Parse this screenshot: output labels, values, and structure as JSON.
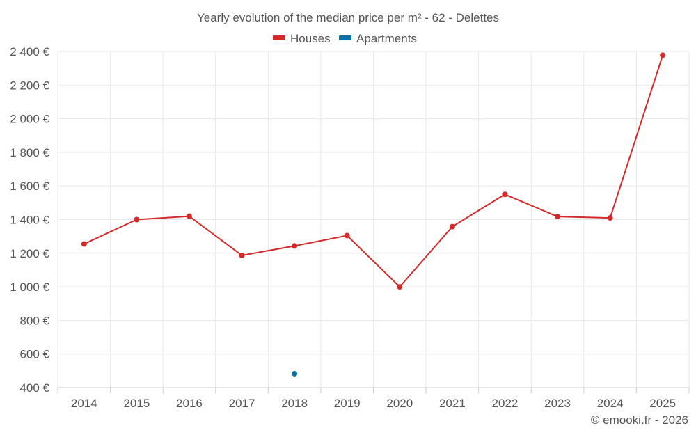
{
  "chart_data": {
    "type": "line",
    "title": "Yearly evolution of the median price per m² - 62 - Delettes",
    "categories": [
      "2014",
      "2015",
      "2016",
      "2017",
      "2018",
      "2019",
      "2020",
      "2021",
      "2022",
      "2023",
      "2024",
      "2025"
    ],
    "ylim": [
      400,
      2400
    ],
    "yticks": [
      400,
      600,
      800,
      1000,
      1200,
      1400,
      1600,
      1800,
      2000,
      2200,
      2400
    ],
    "ytick_labels": [
      "400 €",
      "600 €",
      "800 €",
      "1 000 €",
      "1 200 €",
      "1 400 €",
      "1 600 €",
      "1 800 €",
      "2 000 €",
      "2 200 €",
      "2 400 €"
    ],
    "grid": true,
    "legend_position": "top-center",
    "series": [
      {
        "name": "Houses",
        "color": "#d42a2a",
        "values": [
          1255,
          1400,
          1420,
          1187,
          1243,
          1305,
          1000,
          1358,
          1550,
          1418,
          1410,
          2378
        ]
      },
      {
        "name": "Apartments",
        "color": "#0e6ea6",
        "values": [
          null,
          null,
          null,
          null,
          483,
          null,
          null,
          null,
          null,
          null,
          null,
          null
        ]
      }
    ]
  },
  "credit": "© emooki.fr - 2026"
}
